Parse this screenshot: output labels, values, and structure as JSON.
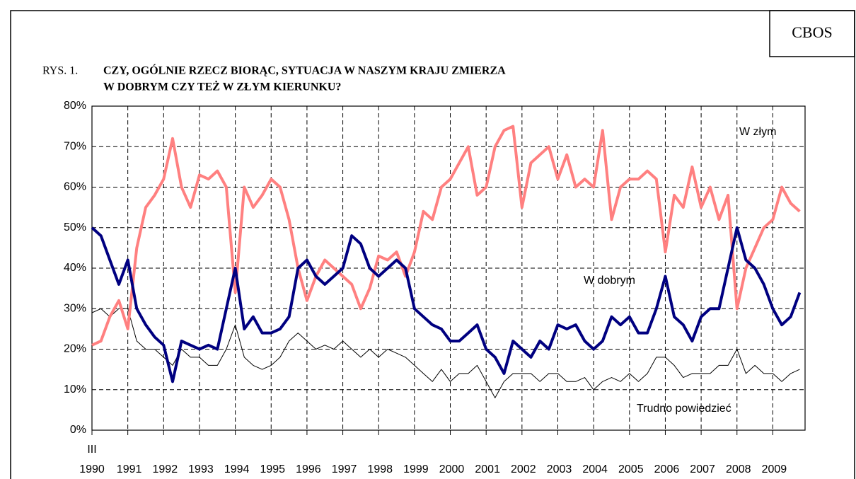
{
  "source": "CBOS",
  "chart_data": {
    "type": "line",
    "figure_label": "RYS. 1.",
    "title": [
      "CZY, OGÓLNIE RZECZ BIORĄC, SYTUACJA W NASZYM KRAJU ZMIERZA",
      "W DOBRYM CZY TEŻ W ZŁYM KIERUNKU?"
    ],
    "start_month_label": "III",
    "x": [
      1990,
      1990.25,
      1990.5,
      1990.75,
      1991,
      1991.25,
      1991.5,
      1991.75,
      1992,
      1992.25,
      1992.5,
      1992.75,
      1993,
      1993.25,
      1993.5,
      1993.75,
      1994,
      1994.25,
      1994.5,
      1994.75,
      1995,
      1995.25,
      1995.5,
      1995.75,
      1996,
      1996.25,
      1996.5,
      1996.75,
      1997,
      1997.25,
      1997.5,
      1997.75,
      1998,
      1998.25,
      1998.5,
      1998.75,
      1999,
      1999.25,
      1999.5,
      1999.75,
      2000,
      2000.25,
      2000.5,
      2000.75,
      2001,
      2001.25,
      2001.5,
      2001.75,
      2002,
      2002.25,
      2002.5,
      2002.75,
      2003,
      2003.25,
      2003.5,
      2003.75,
      2004,
      2004.25,
      2004.5,
      2004.75,
      2005,
      2005.25,
      2005.5,
      2005.75,
      2006,
      2006.25,
      2006.5,
      2006.75,
      2007,
      2007.25,
      2007.5,
      2007.75,
      2008,
      2008.25,
      2008.5,
      2008.75,
      2009,
      2009.25,
      2009.5,
      2009.75
    ],
    "series": [
      {
        "name": "W złym",
        "color": "#ff8080",
        "width": 4,
        "values": [
          21,
          22,
          28,
          32,
          25,
          45,
          55,
          58,
          62,
          72,
          60,
          55,
          63,
          62,
          64,
          60,
          34,
          60,
          55,
          58,
          62,
          60,
          52,
          40,
          32,
          38,
          42,
          40,
          38,
          36,
          30,
          35,
          43,
          42,
          44,
          38,
          44,
          54,
          52,
          60,
          62,
          66,
          70,
          58,
          60,
          70,
          74,
          75,
          55,
          66,
          68,
          70,
          62,
          68,
          60,
          62,
          60,
          74,
          52,
          60,
          62,
          62,
          64,
          62,
          44,
          58,
          55,
          65,
          55,
          60,
          52,
          58,
          30,
          40,
          45,
          50,
          52,
          60,
          56,
          54
        ]
      },
      {
        "name": "W dobrym",
        "color": "#000080",
        "width": 4,
        "values": [
          50,
          48,
          42,
          36,
          42,
          30,
          26,
          23,
          21,
          12,
          22,
          21,
          20,
          21,
          20,
          30,
          40,
          25,
          28,
          24,
          24,
          25,
          28,
          40,
          42,
          38,
          36,
          38,
          40,
          48,
          46,
          40,
          38,
          40,
          42,
          40,
          30,
          28,
          26,
          25,
          22,
          22,
          24,
          26,
          20,
          18,
          14,
          22,
          20,
          18,
          22,
          20,
          26,
          25,
          26,
          22,
          20,
          22,
          28,
          26,
          28,
          24,
          24,
          30,
          38,
          28,
          26,
          22,
          28,
          30,
          30,
          40,
          50,
          42,
          40,
          36,
          30,
          26,
          28,
          34
        ]
      },
      {
        "name": "Trudno powiedzieć",
        "color": "#000000",
        "width": 1,
        "values": [
          29,
          30,
          28,
          30,
          30,
          22,
          20,
          20,
          18,
          16,
          20,
          18,
          18,
          16,
          16,
          20,
          26,
          18,
          16,
          15,
          16,
          18,
          22,
          24,
          22,
          20,
          21,
          20,
          22,
          20,
          18,
          20,
          18,
          20,
          19,
          18,
          16,
          14,
          12,
          15,
          12,
          14,
          14,
          16,
          12,
          8,
          12,
          14,
          14,
          14,
          12,
          14,
          14,
          12,
          12,
          13,
          10,
          12,
          13,
          12,
          14,
          12,
          14,
          18,
          18,
          16,
          13,
          14,
          14,
          14,
          16,
          16,
          20,
          14,
          16,
          14,
          14,
          12,
          14,
          15
        ]
      }
    ],
    "xlim": [
      1990,
      2009.9
    ],
    "xticks": [
      1990,
      1991,
      1992,
      1993,
      1994,
      1995,
      1996,
      1997,
      1998,
      1999,
      2000,
      2001,
      2002,
      2003,
      2004,
      2005,
      2006,
      2007,
      2008,
      2009
    ],
    "ylim": [
      0,
      80
    ],
    "yticks": [
      {
        "value": 0,
        "label": "0%"
      },
      {
        "value": 10,
        "label": "10%"
      },
      {
        "value": 20,
        "label": "20%"
      },
      {
        "value": 30,
        "label": "30%"
      },
      {
        "value": 40,
        "label": "40%"
      },
      {
        "value": 50,
        "label": "50%"
      },
      {
        "value": 60,
        "label": "60%"
      },
      {
        "value": 70,
        "label": "70%"
      },
      {
        "value": 80,
        "label": "80%"
      }
    ],
    "grid": true
  }
}
